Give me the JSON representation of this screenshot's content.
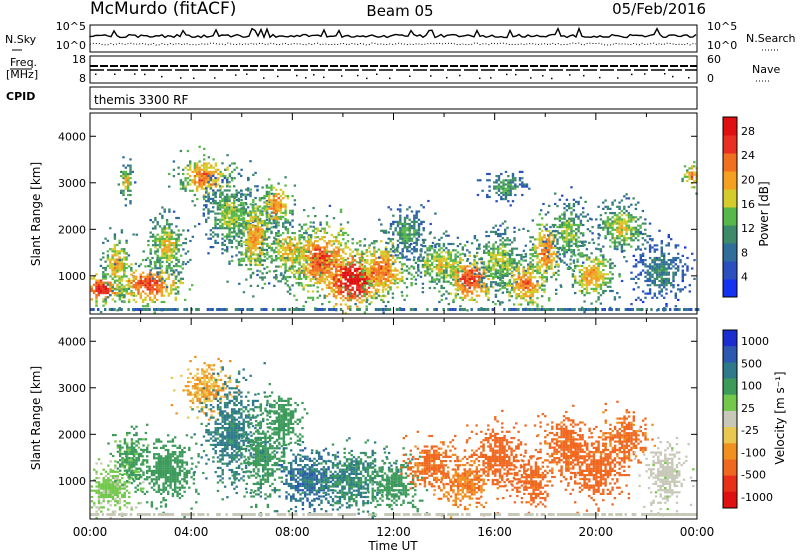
{
  "header": {
    "station": "McMurdo (fitACF)",
    "beam": "Beam 05",
    "date": "05/Feb/2016"
  },
  "upper_panels": {
    "nsky_label": "N.Sky",
    "nsearch_label": "N.Search",
    "nsky_ticks": [
      "10^5",
      "10^0"
    ],
    "nsearch_ticks": [
      "10^5",
      "10^0"
    ],
    "freq_label_1": "Freq.",
    "freq_label_2": "[MHz]",
    "freq_ticks": [
      "18",
      "8"
    ],
    "nave_label": "Nave",
    "nave_ticks": [
      "60",
      "0"
    ],
    "cpid_label": "CPID",
    "cpid_value": "themis 3300 RF"
  },
  "colors": {
    "power": [
      "#1432f0",
      "#2a50c0",
      "#2f6e9a",
      "#3d8a6a",
      "#57b84a",
      "#d4cc2a",
      "#f4a020",
      "#f07020",
      "#e83020",
      "#e01010"
    ],
    "velocity": [
      "#1a2ed0",
      "#2c58b0",
      "#2e7a8a",
      "#3c9a5a",
      "#72c84a",
      "#c8c8b8",
      "#e8c850",
      "#f09020",
      "#f06820",
      "#e83018",
      "#e01010"
    ]
  },
  "chart_data": [
    {
      "type": "heatmap",
      "name": "power",
      "xlabel": "",
      "ylabel": "Slant Range [km]",
      "ylim": [
        180,
        4500
      ],
      "yticks": [
        "1000",
        "2000",
        "3000",
        "4000"
      ],
      "xticks": [
        "00:00",
        "04:00",
        "08:00",
        "12:00",
        "16:00",
        "20:00",
        "00:00"
      ],
      "colorbar_label": "Power [dB]",
      "colorbar_ticks": [
        "4",
        "8",
        "12",
        "16",
        "20",
        "24",
        "28"
      ],
      "colorbar_range": [
        0,
        30
      ],
      "blobs": [
        {
          "t": 0.5,
          "r": 700,
          "dt": 0.7,
          "dr": 250,
          "v": 22
        },
        {
          "t": 1.0,
          "r": 1200,
          "dt": 0.4,
          "dr": 500,
          "v": 16
        },
        {
          "t": 1.4,
          "r": 3000,
          "dt": 0.2,
          "dr": 300,
          "v": 14
        },
        {
          "t": 2.3,
          "r": 800,
          "dt": 1.0,
          "dr": 350,
          "v": 20
        },
        {
          "t": 3.0,
          "r": 1600,
          "dt": 0.6,
          "dr": 500,
          "v": 14
        },
        {
          "t": 4.5,
          "r": 3100,
          "dt": 0.8,
          "dr": 350,
          "v": 18
        },
        {
          "t": 5.5,
          "r": 2300,
          "dt": 0.8,
          "dr": 600,
          "v": 12
        },
        {
          "t": 6.5,
          "r": 1800,
          "dt": 0.6,
          "dr": 700,
          "v": 16
        },
        {
          "t": 7.3,
          "r": 2500,
          "dt": 0.5,
          "dr": 400,
          "v": 17
        },
        {
          "t": 7.9,
          "r": 1500,
          "dt": 0.8,
          "dr": 500,
          "v": 15
        },
        {
          "t": 9.2,
          "r": 1300,
          "dt": 1.0,
          "dr": 600,
          "v": 20
        },
        {
          "t": 10.4,
          "r": 900,
          "dt": 1.0,
          "dr": 450,
          "v": 25
        },
        {
          "t": 11.5,
          "r": 1100,
          "dt": 0.8,
          "dr": 500,
          "v": 18
        },
        {
          "t": 12.5,
          "r": 1900,
          "dt": 0.6,
          "dr": 400,
          "v": 10
        },
        {
          "t": 13.9,
          "r": 1200,
          "dt": 0.9,
          "dr": 400,
          "v": 14
        },
        {
          "t": 15.0,
          "r": 900,
          "dt": 0.8,
          "dr": 400,
          "v": 20
        },
        {
          "t": 16.2,
          "r": 1300,
          "dt": 0.7,
          "dr": 500,
          "v": 13
        },
        {
          "t": 16.4,
          "r": 2900,
          "dt": 0.6,
          "dr": 250,
          "v": 10
        },
        {
          "t": 17.2,
          "r": 800,
          "dt": 0.7,
          "dr": 400,
          "v": 18
        },
        {
          "t": 18.0,
          "r": 1500,
          "dt": 0.5,
          "dr": 500,
          "v": 18
        },
        {
          "t": 18.9,
          "r": 1900,
          "dt": 0.6,
          "dr": 500,
          "v": 12
        },
        {
          "t": 19.8,
          "r": 1000,
          "dt": 0.7,
          "dr": 400,
          "v": 16
        },
        {
          "t": 21.0,
          "r": 2000,
          "dt": 0.7,
          "dr": 400,
          "v": 14
        },
        {
          "t": 22.5,
          "r": 1100,
          "dt": 0.8,
          "dr": 500,
          "v": 8
        },
        {
          "t": 23.8,
          "r": 3100,
          "dt": 0.3,
          "dr": 200,
          "v": 18
        }
      ]
    },
    {
      "type": "heatmap",
      "name": "velocity",
      "xlabel": "Time UT",
      "ylabel": "Slant Range [km]",
      "ylim": [
        180,
        4500
      ],
      "yticks": [
        "1000",
        "2000",
        "3000",
        "4000"
      ],
      "xticks": [
        "00:00",
        "04:00",
        "08:00",
        "12:00",
        "16:00",
        "20:00",
        "00:00"
      ],
      "colorbar_label": "Velocity [m s⁻¹]",
      "colorbar_ticks": [
        "1000",
        "500",
        "100",
        "25",
        "-25",
        "-100",
        "-500",
        "-1000"
      ],
      "colorbar_range": [
        -1000,
        1000
      ],
      "blobs": [
        {
          "t": 0.8,
          "r": 800,
          "dt": 0.8,
          "dr": 400,
          "v": 30
        },
        {
          "t": 1.5,
          "r": 1500,
          "dt": 0.5,
          "dr": 400,
          "v": 120
        },
        {
          "t": 3.0,
          "r": 1200,
          "dt": 0.9,
          "dr": 500,
          "v": 150
        },
        {
          "t": 4.5,
          "r": 3000,
          "dt": 0.7,
          "dr": 400,
          "v": -60
        },
        {
          "t": 5.6,
          "r": 2000,
          "dt": 0.8,
          "dr": 800,
          "v": 300
        },
        {
          "t": 6.8,
          "r": 1500,
          "dt": 0.6,
          "dr": 700,
          "v": 200
        },
        {
          "t": 7.6,
          "r": 2300,
          "dt": 0.5,
          "dr": 500,
          "v": 150
        },
        {
          "t": 8.6,
          "r": 1000,
          "dt": 0.9,
          "dr": 450,
          "v": 450
        },
        {
          "t": 10.3,
          "r": 1000,
          "dt": 1.2,
          "dr": 500,
          "v": 250
        },
        {
          "t": 12.0,
          "r": 900,
          "dt": 0.7,
          "dr": 400,
          "v": 180
        },
        {
          "t": 13.5,
          "r": 1300,
          "dt": 0.8,
          "dr": 400,
          "v": -120
        },
        {
          "t": 14.8,
          "r": 900,
          "dt": 0.7,
          "dr": 400,
          "v": -90
        },
        {
          "t": 16.1,
          "r": 1500,
          "dt": 0.8,
          "dr": 500,
          "v": -150
        },
        {
          "t": 17.4,
          "r": 1000,
          "dt": 0.6,
          "dr": 400,
          "v": -140
        },
        {
          "t": 18.8,
          "r": 1700,
          "dt": 0.7,
          "dr": 500,
          "v": -130
        },
        {
          "t": 20.0,
          "r": 1200,
          "dt": 0.8,
          "dr": 500,
          "v": -160
        },
        {
          "t": 21.1,
          "r": 1900,
          "dt": 0.7,
          "dr": 400,
          "v": -120
        },
        {
          "t": 22.7,
          "r": 1100,
          "dt": 0.6,
          "dr": 500,
          "v": 20
        }
      ]
    }
  ]
}
